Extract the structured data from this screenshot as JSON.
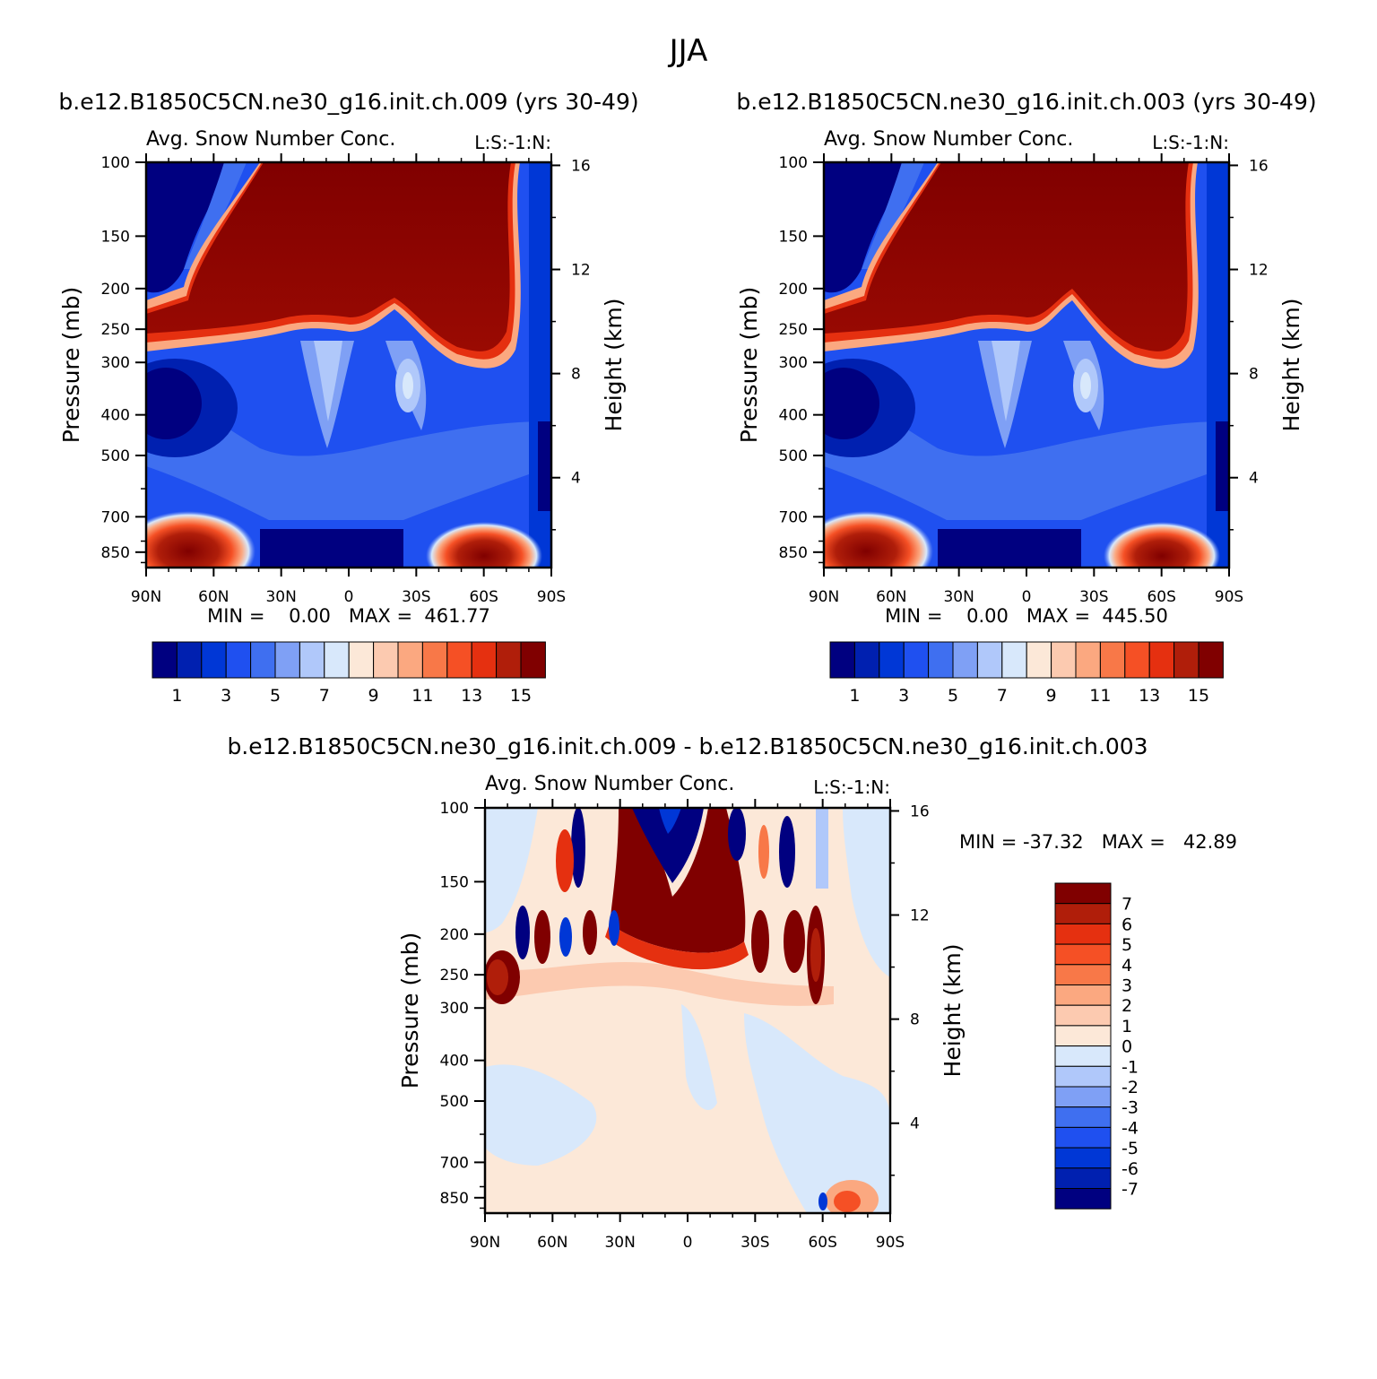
{
  "page_title": "JJA",
  "panels": [
    {
      "title": "b.e12.B1850C5CN.ne30_g16.init.ch.009 (yrs 30-49)",
      "subtitle_left": "Avg. Snow Number Conc.",
      "subtitle_right": "L:S:-1:N:",
      "ylabel_left": "Pressure (mb)",
      "ylabel_right": "Height (km)",
      "minmax": "MIN =    0.00   MAX =  461.77"
    },
    {
      "title": "b.e12.B1850C5CN.ne30_g16.init.ch.003 (yrs 30-49)",
      "subtitle_left": "Avg. Snow Number Conc.",
      "subtitle_right": "L:S:-1:N:",
      "ylabel_left": "Pressure (mb)",
      "ylabel_right": "Height (km)",
      "minmax": "MIN =    0.00   MAX =  445.50"
    },
    {
      "title": "b.e12.B1850C5CN.ne30_g16.init.ch.009 - b.e12.B1850C5CN.ne30_g16.init.ch.003",
      "subtitle_left": "Avg. Snow Number Conc.",
      "subtitle_right": "L:S:-1:N:",
      "ylabel_left": "Pressure (mb)",
      "ylabel_right": "Height (km)",
      "minmax": "MIN = -37.32   MAX =   42.89"
    }
  ],
  "colors": {
    "abs_scale": [
      "#000080",
      "#0020b0",
      "#0037d6",
      "#1f50f0",
      "#3f6ff0",
      "#7fa0f5",
      "#b0c8fa",
      "#d8e8fb",
      "#fce8d8",
      "#fccab0",
      "#fba880",
      "#f87848",
      "#f55025",
      "#e53010",
      "#b01e0a",
      "#800000"
    ],
    "diff_scale": [
      "#000080",
      "#0020b0",
      "#0037d6",
      "#1f50f0",
      "#3f6ff0",
      "#7fa0f5",
      "#b0c8fa",
      "#d8e8fb",
      "#fce8d8",
      "#fccab0",
      "#fba880",
      "#f87848",
      "#f55025",
      "#e53010",
      "#b01e0a",
      "#800000"
    ]
  },
  "chart_data": [
    {
      "type": "heatmap",
      "title": "b.e12.B1850C5CN.ne30_g16.init.ch.009 (yrs 30-49)",
      "x_ticks": [
        "90N",
        "60N",
        "30N",
        "0",
        "30S",
        "60S",
        "90S"
      ],
      "x_values": [
        90,
        60,
        30,
        0,
        -30,
        -60,
        -90
      ],
      "y_ticks": [
        "100",
        "150",
        "200",
        "250",
        "300",
        "400",
        "500",
        "700",
        "850"
      ],
      "y_values": [
        100,
        150,
        200,
        250,
        300,
        400,
        500,
        700,
        850
      ],
      "y_scale": "log",
      "ylim": [
        100,
        925
      ],
      "y2_ticks": [
        "16",
        "12",
        "8",
        "4"
      ],
      "y2_values": [
        16,
        12,
        8,
        4
      ],
      "colorbar_labels": [
        "1",
        "3",
        "5",
        "7",
        "9",
        "11",
        "13",
        "15"
      ],
      "min": 0.0,
      "max": 461.77
    },
    {
      "type": "heatmap",
      "title": "b.e12.B1850C5CN.ne30_g16.init.ch.003 (yrs 30-49)",
      "x_ticks": [
        "90N",
        "60N",
        "30N",
        "0",
        "30S",
        "60S",
        "90S"
      ],
      "x_values": [
        90,
        60,
        30,
        0,
        -30,
        -60,
        -90
      ],
      "y_ticks": [
        "100",
        "150",
        "200",
        "250",
        "300",
        "400",
        "500",
        "700",
        "850"
      ],
      "y_values": [
        100,
        150,
        200,
        250,
        300,
        400,
        500,
        700,
        850
      ],
      "y_scale": "log",
      "ylim": [
        100,
        925
      ],
      "y2_ticks": [
        "16",
        "12",
        "8",
        "4"
      ],
      "y2_values": [
        16,
        12,
        8,
        4
      ],
      "colorbar_labels": [
        "1",
        "3",
        "5",
        "7",
        "9",
        "11",
        "13",
        "15"
      ],
      "min": 0.0,
      "max": 445.5
    },
    {
      "type": "heatmap",
      "title": "b.e12.B1850C5CN.ne30_g16.init.ch.009 - b.e12.B1850C5CN.ne30_g16.init.ch.003",
      "x_ticks": [
        "90N",
        "60N",
        "30N",
        "0",
        "30S",
        "60S",
        "90S"
      ],
      "x_values": [
        90,
        60,
        30,
        0,
        -30,
        -60,
        -90
      ],
      "y_ticks": [
        "100",
        "150",
        "200",
        "250",
        "300",
        "400",
        "500",
        "700",
        "850"
      ],
      "y_values": [
        100,
        150,
        200,
        250,
        300,
        400,
        500,
        700,
        850
      ],
      "y_scale": "log",
      "ylim": [
        100,
        925
      ],
      "y2_ticks": [
        "16",
        "12",
        "8",
        "4"
      ],
      "y2_values": [
        16,
        12,
        8,
        4
      ],
      "colorbar_labels": [
        "7",
        "6",
        "5",
        "4",
        "3",
        "2",
        "1",
        "0",
        "-1",
        "-2",
        "-3",
        "-4",
        "-5",
        "-6",
        "-7"
      ],
      "min": -37.32,
      "max": 42.89
    }
  ]
}
